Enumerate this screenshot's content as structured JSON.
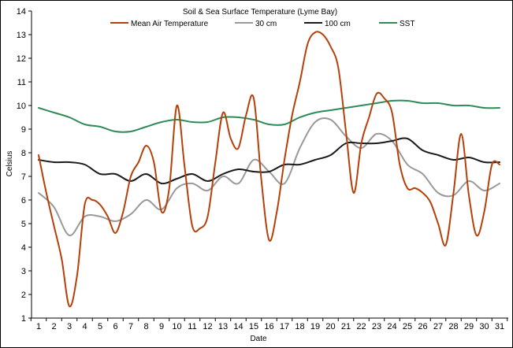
{
  "chart_data": {
    "type": "line",
    "title": "Soil & Sea Surface Temperature (Lyme Bay)",
    "xlabel": "Date",
    "ylabel": "Celsius",
    "ylim": [
      1,
      14
    ],
    "xlim": [
      1,
      31
    ],
    "grid": false,
    "legend": "top",
    "x": [
      1,
      2,
      3,
      4,
      5,
      6,
      7,
      8,
      9,
      10,
      11,
      12,
      13,
      14,
      15,
      16,
      17,
      18,
      19,
      20,
      21,
      22,
      23,
      24,
      25,
      26,
      27,
      28,
      29,
      30,
      31
    ],
    "series": [
      {
        "name": "Mean Air Temperature",
        "color": "#b5400a",
        "x": [
          1,
          1.5,
          2,
          2.5,
          3,
          3.5,
          4,
          4.5,
          5,
          5.5,
          6,
          6.5,
          7,
          7.5,
          8,
          8.5,
          9,
          9.5,
          10,
          10.5,
          11,
          11.5,
          12,
          12.5,
          13,
          13.5,
          14,
          14.5,
          15,
          15.5,
          16,
          16.5,
          17,
          17.5,
          18,
          18.5,
          19,
          19.5,
          20,
          20.5,
          21,
          21.5,
          22,
          22.5,
          23,
          23.5,
          24,
          24.5,
          25,
          25.5,
          26,
          26.5,
          27,
          27.5,
          28,
          28.5,
          29,
          29.5,
          30,
          30.5,
          31
        ],
        "values": [
          7.9,
          6.3,
          4.9,
          3.5,
          1.5,
          2.8,
          5.8,
          6.0,
          5.8,
          5.3,
          4.6,
          5.5,
          7.0,
          7.6,
          8.3,
          7.6,
          5.5,
          6.5,
          10.0,
          7.4,
          4.9,
          4.8,
          5.3,
          7.6,
          9.7,
          8.6,
          8.2,
          9.6,
          10.3,
          6.8,
          4.3,
          5.5,
          7.7,
          9.6,
          11.0,
          12.6,
          13.1,
          13.0,
          12.5,
          11.6,
          8.9,
          6.3,
          8.4,
          9.5,
          10.5,
          10.3,
          9.7,
          7.5,
          6.5,
          6.5,
          6.3,
          5.9,
          5.0,
          4.1,
          6.3,
          8.8,
          6.2,
          4.5,
          5.5,
          7.5,
          7.5
        ]
      },
      {
        "name": "30 cm",
        "color": "#999999",
        "values": [
          6.3,
          5.7,
          4.5,
          5.3,
          5.3,
          5.1,
          5.4,
          6.0,
          5.6,
          6.5,
          6.7,
          6.4,
          7.0,
          6.7,
          7.7,
          7.2,
          6.7,
          8.2,
          9.3,
          9.4,
          8.7,
          8.2,
          8.8,
          8.5,
          7.5,
          7.1,
          6.3,
          6.2,
          6.8,
          6.4,
          6.7
        ]
      },
      {
        "name": "100 cm",
        "color": "#1a1a1a",
        "values": [
          7.7,
          7.6,
          7.6,
          7.5,
          7.1,
          7.1,
          6.8,
          7.1,
          6.7,
          6.9,
          7.1,
          6.8,
          7.1,
          7.3,
          7.2,
          7.2,
          7.5,
          7.5,
          7.7,
          7.9,
          8.4,
          8.4,
          8.4,
          8.5,
          8.6,
          8.1,
          7.9,
          7.7,
          7.8,
          7.6,
          7.6
        ]
      },
      {
        "name": "SST",
        "color": "#2e8b57",
        "values": [
          9.9,
          9.7,
          9.5,
          9.2,
          9.1,
          8.9,
          8.9,
          9.1,
          9.3,
          9.4,
          9.3,
          9.3,
          9.5,
          9.5,
          9.4,
          9.2,
          9.2,
          9.5,
          9.7,
          9.8,
          9.9,
          10.0,
          10.1,
          10.2,
          10.2,
          10.1,
          10.1,
          10.0,
          10.0,
          9.9,
          9.9
        ]
      }
    ],
    "yticks": [
      "1",
      "2",
      "3",
      "4",
      "5",
      "6",
      "7",
      "8",
      "9",
      "10",
      "11",
      "12",
      "13",
      "14"
    ],
    "xticks": [
      "1",
      "2",
      "3",
      "4",
      "5",
      "6",
      "7",
      "8",
      "9",
      "10",
      "11",
      "12",
      "13",
      "14",
      "15",
      "16",
      "17",
      "18",
      "19",
      "20",
      "21",
      "22",
      "23",
      "24",
      "25",
      "26",
      "27",
      "28",
      "29",
      "30",
      "31"
    ]
  }
}
